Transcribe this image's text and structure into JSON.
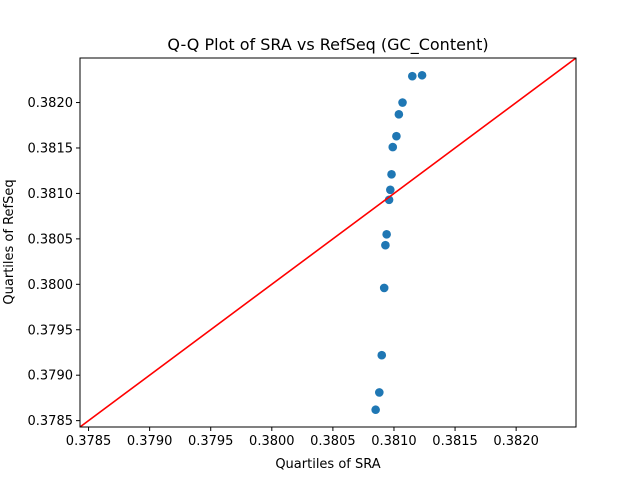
{
  "chart_data": {
    "type": "scatter",
    "title": "Q-Q Plot of SRA vs RefSeq (GC_Content)",
    "xlabel": "Quartiles of SRA",
    "ylabel": "Quartiles of RefSeq",
    "xlim": [
      0.37843,
      0.38249
    ],
    "ylim": [
      0.37843,
      0.38249
    ],
    "x_ticks": [
      0.3785,
      0.379,
      0.3795,
      0.38,
      0.3805,
      0.381,
      0.3815,
      0.382
    ],
    "x_tick_labels": [
      "0.3785",
      "0.3790",
      "0.3795",
      "0.3800",
      "0.3805",
      "0.3810",
      "0.3815",
      "0.3820"
    ],
    "y_ticks": [
      0.3785,
      0.379,
      0.3795,
      0.38,
      0.3805,
      0.381,
      0.3815,
      0.382
    ],
    "y_tick_labels": [
      "0.3785",
      "0.3790",
      "0.3795",
      "0.3800",
      "0.3805",
      "0.3810",
      "0.3815",
      "0.3820"
    ],
    "grid": false,
    "points": [
      {
        "x": 0.38085,
        "y": 0.37862
      },
      {
        "x": 0.38088,
        "y": 0.37881
      },
      {
        "x": 0.3809,
        "y": 0.37922
      },
      {
        "x": 0.38092,
        "y": 0.37996
      },
      {
        "x": 0.38093,
        "y": 0.38043
      },
      {
        "x": 0.38094,
        "y": 0.38055
      },
      {
        "x": 0.38096,
        "y": 0.38093
      },
      {
        "x": 0.38097,
        "y": 0.38104
      },
      {
        "x": 0.38098,
        "y": 0.38121
      },
      {
        "x": 0.38099,
        "y": 0.38151
      },
      {
        "x": 0.38102,
        "y": 0.38163
      },
      {
        "x": 0.38104,
        "y": 0.38187
      },
      {
        "x": 0.38107,
        "y": 0.382
      },
      {
        "x": 0.38115,
        "y": 0.38229
      },
      {
        "x": 0.38123,
        "y": 0.3823
      }
    ],
    "point_color": "#1f77b4",
    "reference_line": {
      "slope": 1,
      "intercept": 0,
      "color": "#ff0000"
    }
  }
}
